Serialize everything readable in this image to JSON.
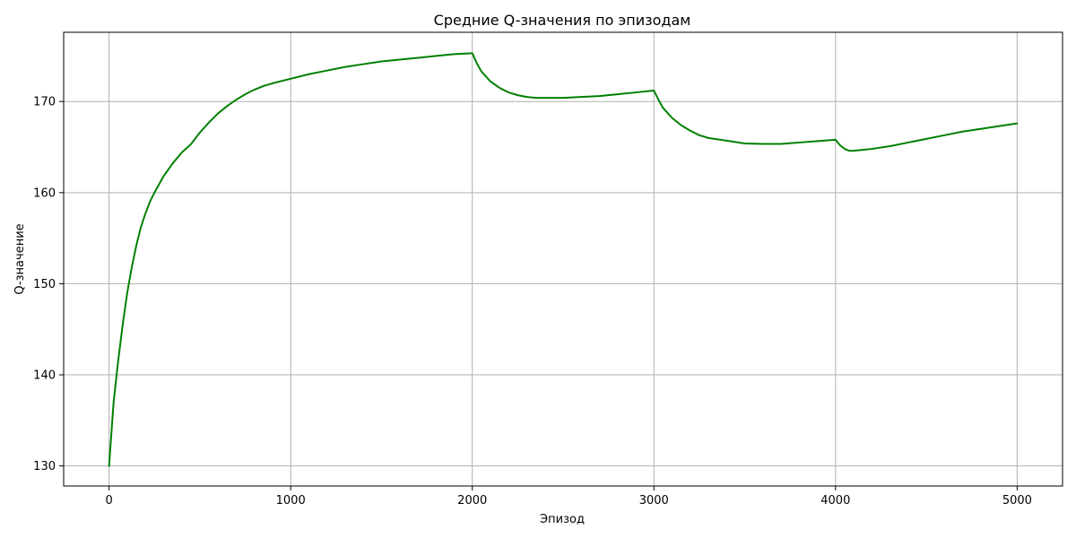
{
  "chart_data": {
    "type": "line",
    "title": "Средние Q-значения по эпизодам",
    "xlabel": "Эпизод",
    "ylabel": "Q-значение",
    "xlim": [
      -250,
      5250
    ],
    "ylim": [
      127.8,
      177.6
    ],
    "xticks": [
      0,
      1000,
      2000,
      3000,
      4000,
      5000
    ],
    "yticks": [
      130,
      140,
      150,
      160,
      170
    ],
    "xtick_labels": [
      "0",
      "1000",
      "2000",
      "3000",
      "4000",
      "5000"
    ],
    "ytick_labels": [
      "130",
      "140",
      "150",
      "160",
      "170"
    ],
    "grid": true,
    "legend": "none",
    "series": [
      {
        "color": "#008000",
        "x": [
          0,
          25,
          50,
          75,
          100,
          125,
          150,
          175,
          200,
          225,
          250,
          300,
          350,
          400,
          450,
          500,
          550,
          600,
          650,
          700,
          750,
          800,
          850,
          900,
          1000,
          1100,
          1200,
          1300,
          1400,
          1500,
          1600,
          1700,
          1800,
          1900,
          2000,
          2025,
          2050,
          2100,
          2150,
          2200,
          2250,
          2300,
          2350,
          2400,
          2450,
          2500,
          2600,
          2700,
          2800,
          2900,
          3000,
          3025,
          3050,
          3100,
          3150,
          3200,
          3250,
          3300,
          3400,
          3500,
          3600,
          3700,
          3800,
          3900,
          4000,
          4025,
          4050,
          4075,
          4100,
          4150,
          4200,
          4300,
          4400,
          4500,
          4600,
          4700,
          4800,
          4900,
          5000
        ],
        "y": [
          130.0,
          137.0,
          141.5,
          145.5,
          149.0,
          151.8,
          154.2,
          156.2,
          157.7,
          159.0,
          160.0,
          161.8,
          163.2,
          164.4,
          165.3,
          166.6,
          167.7,
          168.7,
          169.5,
          170.2,
          170.8,
          171.3,
          171.7,
          172.0,
          172.5,
          173.0,
          173.4,
          173.8,
          174.1,
          174.4,
          174.6,
          174.8,
          175.0,
          175.2,
          175.3,
          174.2,
          173.3,
          172.2,
          171.5,
          171.0,
          170.7,
          170.5,
          170.4,
          170.4,
          170.4,
          170.4,
          170.5,
          170.6,
          170.8,
          171.0,
          171.2,
          170.2,
          169.3,
          168.2,
          167.4,
          166.8,
          166.3,
          166.0,
          165.7,
          165.4,
          165.35,
          165.35,
          165.5,
          165.65,
          165.8,
          165.2,
          164.8,
          164.6,
          164.6,
          164.7,
          164.8,
          165.1,
          165.5,
          165.9,
          166.3,
          166.7,
          167.0,
          167.3,
          167.6
        ]
      }
    ]
  }
}
